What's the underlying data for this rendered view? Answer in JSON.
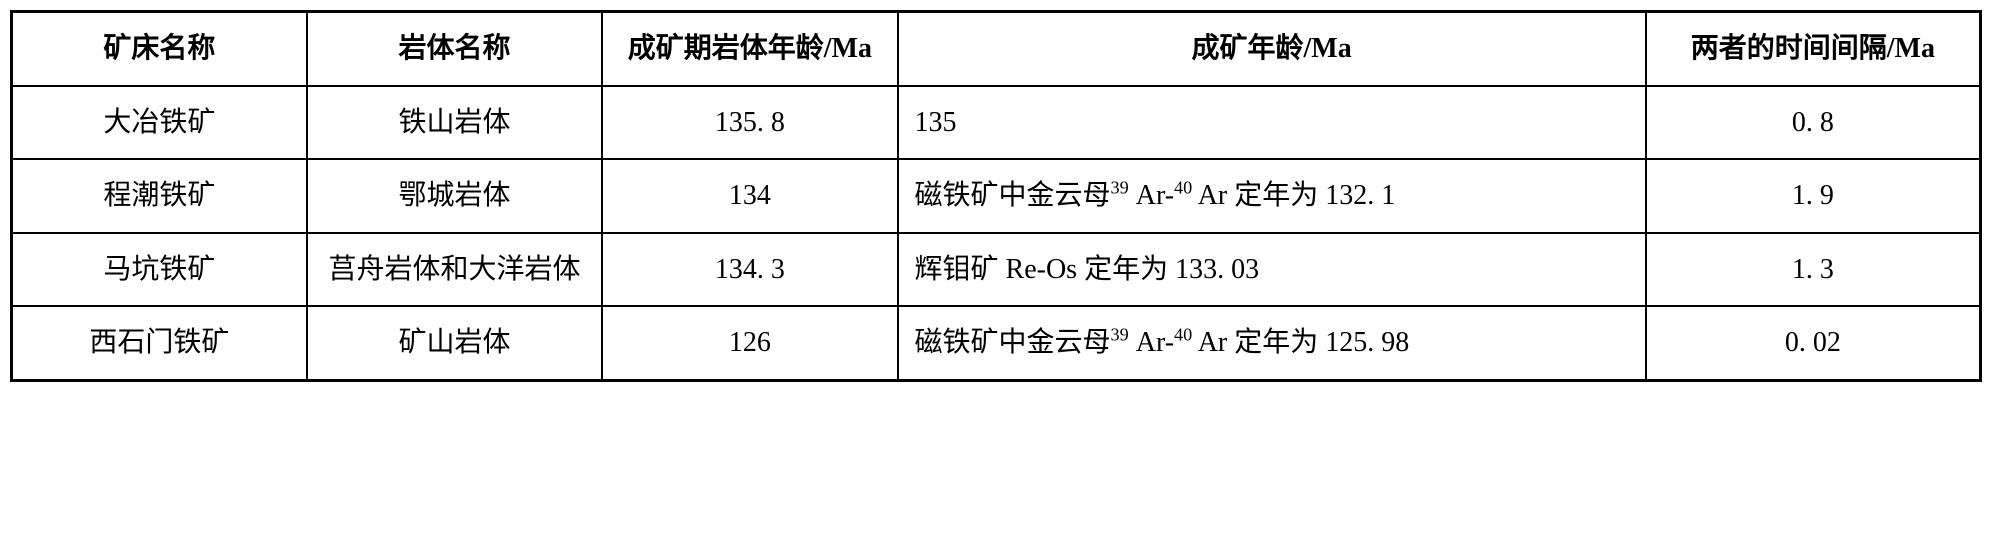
{
  "table": {
    "type": "table",
    "background_color": "#ffffff",
    "border_color": "#000000",
    "outer_border_width": 3,
    "inner_border_width": 2,
    "font_family": "SimSun",
    "font_size_pt": 21,
    "line_height": 1.7,
    "columns": [
      {
        "label": "矿床名称",
        "width": "15%",
        "align": "center"
      },
      {
        "label": "岩体名称",
        "width": "15%",
        "align": "center"
      },
      {
        "label": "成矿期岩体年龄/Ma",
        "width": "15%",
        "align": "center"
      },
      {
        "label": "成矿年龄/Ma",
        "width": "38%",
        "align": "center"
      },
      {
        "label": "两者的时间间隔/Ma",
        "width": "17%",
        "align": "center"
      }
    ],
    "rows": [
      {
        "deposit": "大冶铁矿",
        "body": "铁山岩体",
        "igneous_age": "135. 8",
        "ore_age_html": "135",
        "ore_age_align": "left",
        "interval": "0. 8"
      },
      {
        "deposit": "程潮铁矿",
        "body": "鄂城岩体",
        "igneous_age": "134",
        "ore_age_html": "磁铁矿中金云母<sup>39</sup> Ar-<sup>40</sup> Ar 定年为 132. 1",
        "ore_age_align": "left",
        "interval": "1. 9"
      },
      {
        "deposit": "马坑铁矿",
        "body": "莒舟岩体和大洋岩体",
        "igneous_age": "134. 3",
        "ore_age_html": "辉钼矿 Re-Os 定年为 133. 03",
        "ore_age_align": "left",
        "interval": "1. 3"
      },
      {
        "deposit": "西石门铁矿",
        "body": "矿山岩体",
        "igneous_age": "126",
        "ore_age_html": "磁铁矿中金云母<sup>39</sup> Ar-<sup>40</sup> Ar 定年为 125. 98",
        "ore_age_align": "left",
        "interval": "0. 02"
      }
    ]
  }
}
